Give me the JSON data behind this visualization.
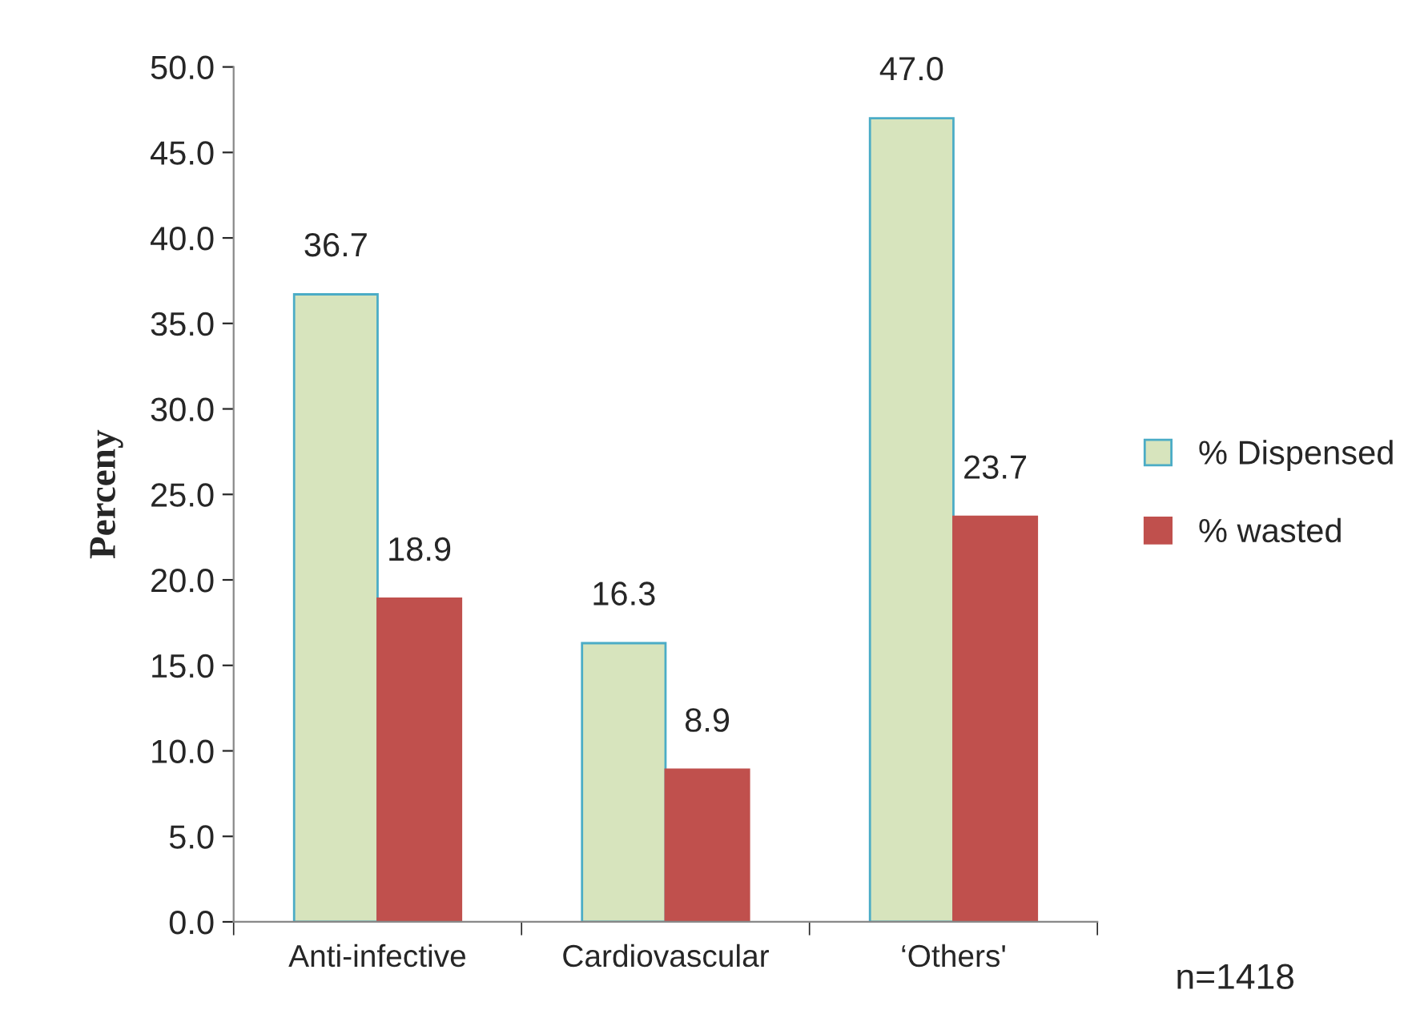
{
  "chart_data": {
    "type": "bar",
    "ylabel": "Perceny",
    "categories": [
      "Anti-infective",
      "Cardiovascular",
      "‘Others'"
    ],
    "series": [
      {
        "name": "% Dispensed",
        "color": "#d7e4bd",
        "values": [
          36.7,
          16.3,
          47.0
        ],
        "value_labels": [
          "36.7",
          "16.3",
          "47.0"
        ]
      },
      {
        "name": "% wasted",
        "color": "#c0504d",
        "values": [
          18.9,
          8.9,
          23.7
        ],
        "value_labels": [
          "18.9",
          "8.9",
          "23.7"
        ]
      }
    ],
    "ylim": [
      0,
      50
    ],
    "yticks": [
      {
        "value": 0,
        "label": "0.0"
      },
      {
        "value": 5,
        "label": "5.0"
      },
      {
        "value": 10,
        "label": "10.0"
      },
      {
        "value": 15,
        "label": "15.0"
      },
      {
        "value": 20,
        "label": "20.0"
      },
      {
        "value": 25,
        "label": "25.0"
      },
      {
        "value": 30,
        "label": "30.0"
      },
      {
        "value": 35,
        "label": "35.0"
      },
      {
        "value": 40,
        "label": "40.0"
      },
      {
        "value": 45,
        "label": "45.0"
      },
      {
        "value": 50,
        "label": "50.0"
      }
    ],
    "grid": false,
    "legend": "right",
    "annotations": [
      "n=1418"
    ]
  }
}
